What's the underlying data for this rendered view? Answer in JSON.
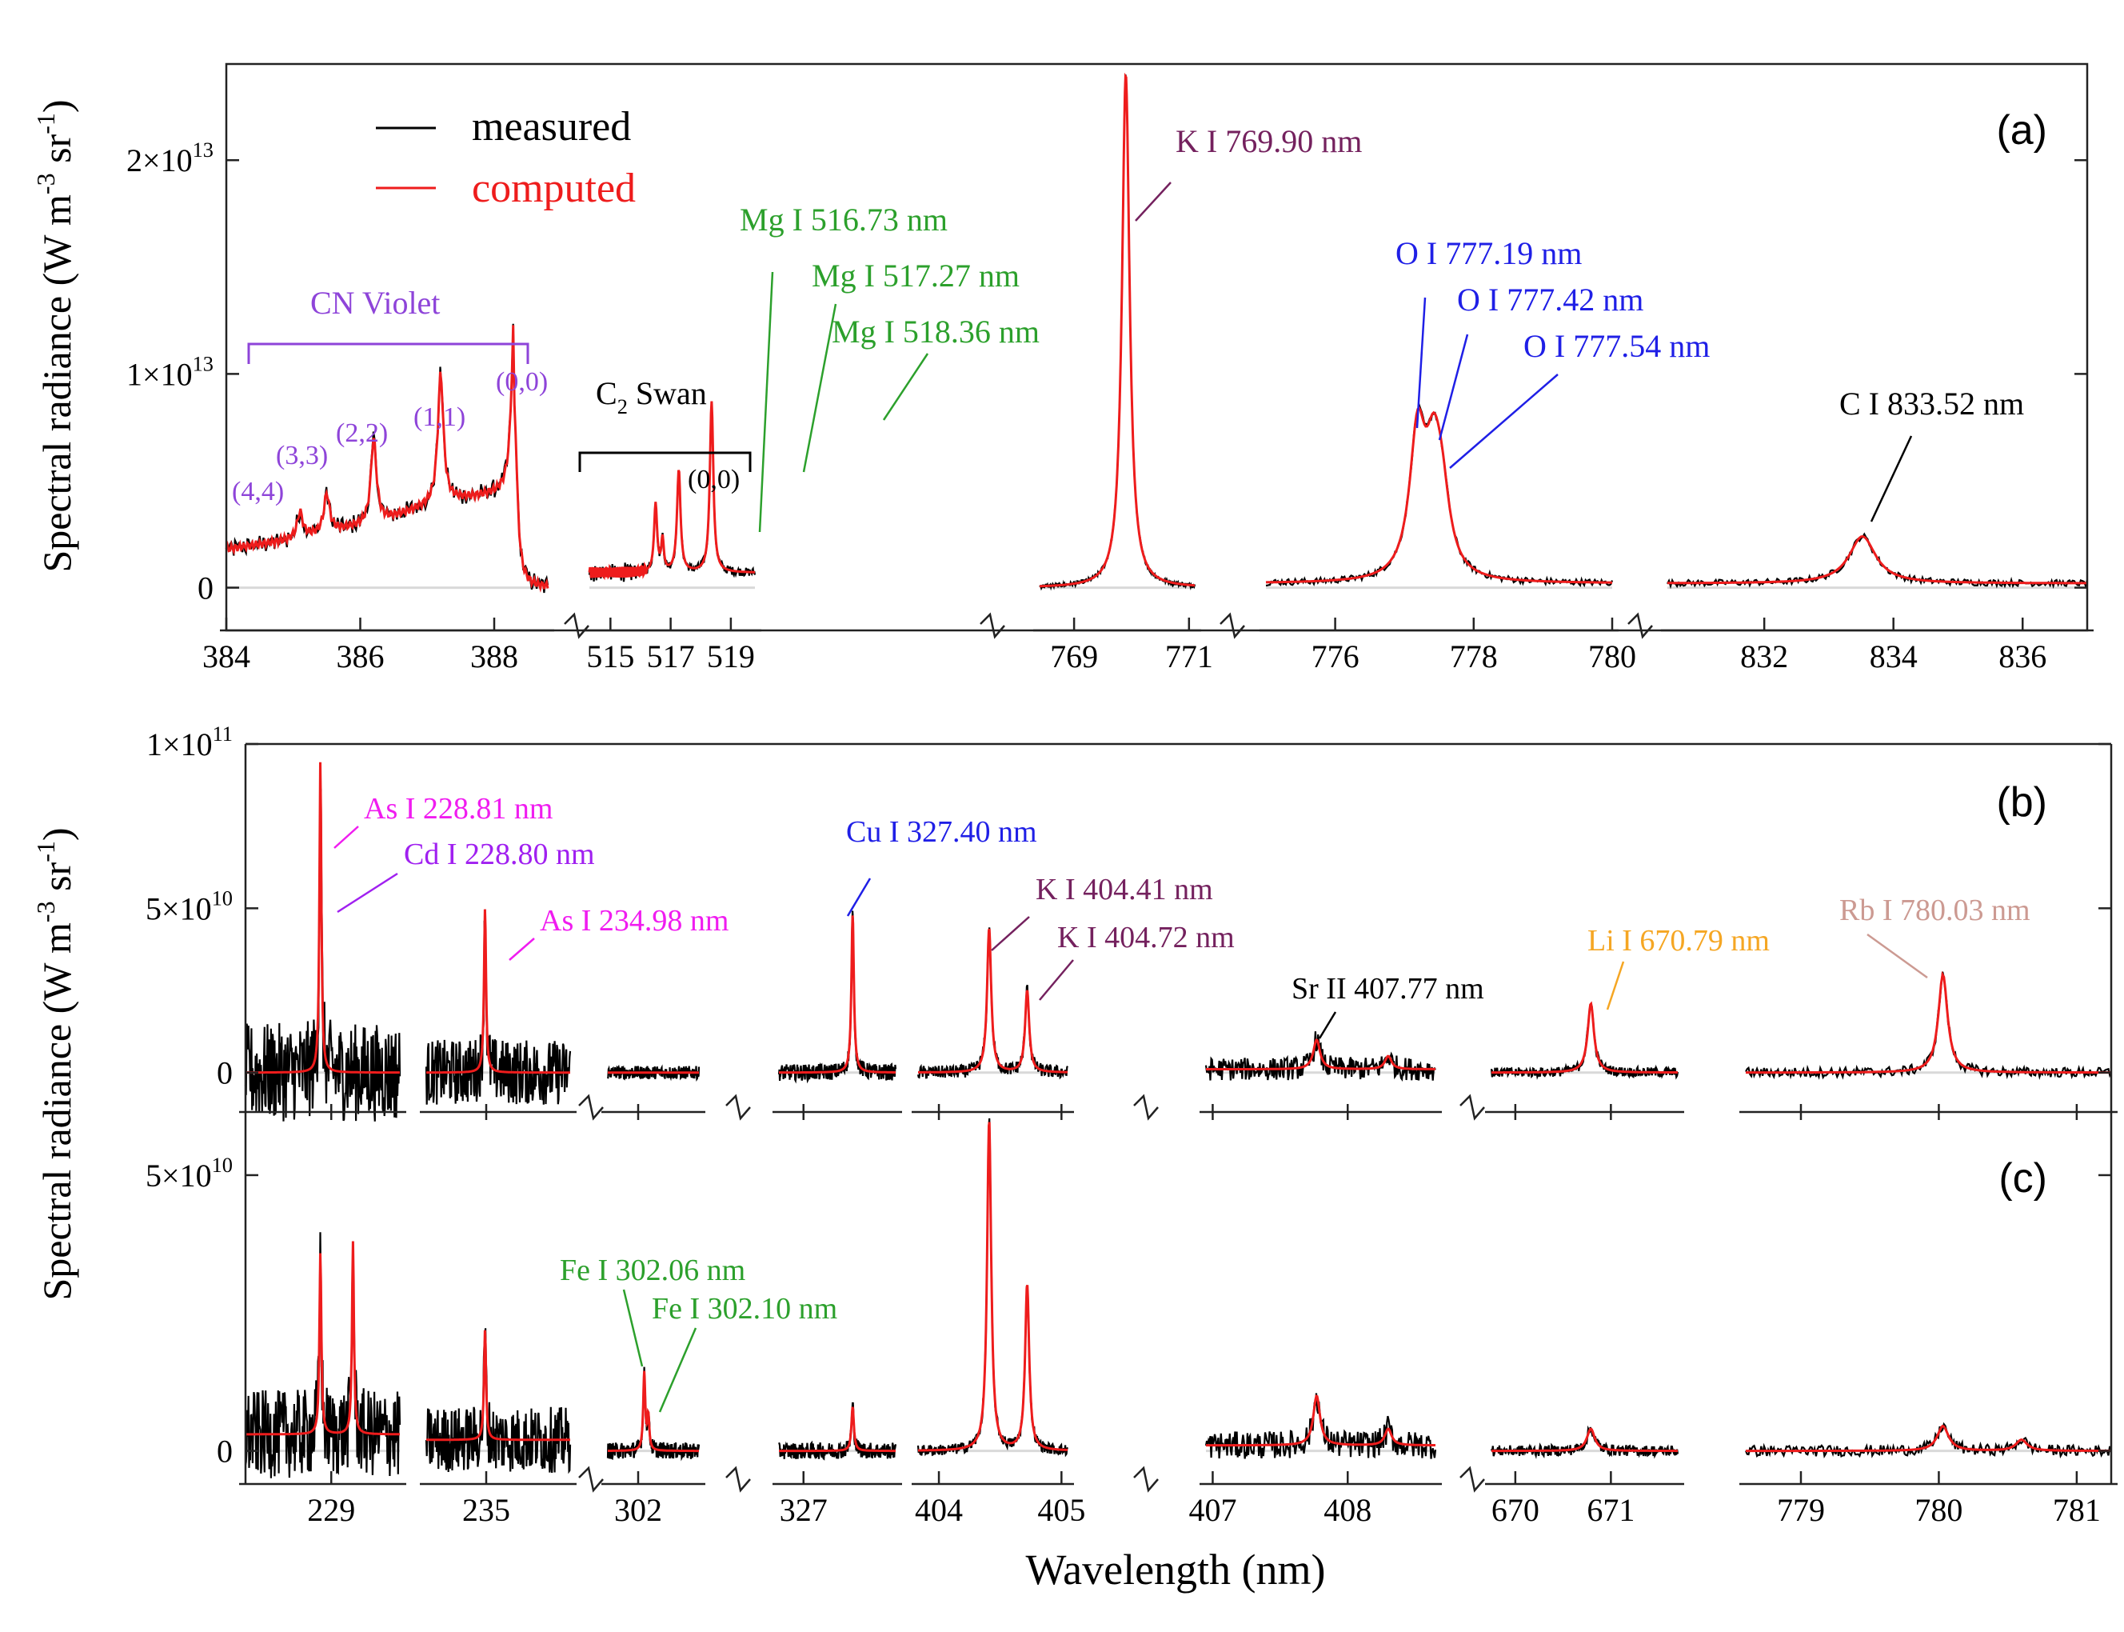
{
  "figure": {
    "x_axis_title": "Wavelength (nm)",
    "legend": {
      "measured": "measured",
      "computed": "computed"
    }
  },
  "colors": {
    "measured": "#000000",
    "computed": "#ee1c1c",
    "cn": "#8e44d9",
    "mg": "#2ca02c",
    "k": "#74215e",
    "o": "#1f1fe6",
    "as": "#f01cf0",
    "cd": "#a020f0",
    "cu": "#1f1fe6",
    "li": "#f5a623",
    "rb": "#cc9a92",
    "fe": "#2ca02c",
    "black": "#000000"
  },
  "chart_data": [
    {
      "type": "line",
      "panel_label": "(a)",
      "ylabel_main": "Spectral radiance (W m",
      "ylabel_exp1": "-3",
      "ylabel_mid": " sr",
      "ylabel_exp2": "-1",
      "ylabel_end": ")",
      "ylim": [
        -2000000000000.0,
        24500000000000.0
      ],
      "yticks": [
        {
          "value": 0,
          "base": "0",
          "exp": ""
        },
        {
          "value": 10000000000000.0,
          "base": "1×10",
          "exp": "13"
        },
        {
          "value": 20000000000000.0,
          "base": "2×10",
          "exp": "13"
        }
      ],
      "series_names": [
        "measured",
        "computed"
      ],
      "segments": [
        {
          "range": [
            384,
            388.8
          ],
          "ticks": [
            "384",
            "386",
            "388"
          ],
          "baseline": 1200000000000.0,
          "noise": 300000000000.0,
          "ramp": [
            [
              384,
              1800000000000.0
            ],
            [
              384.9,
              2200000000000.0
            ],
            [
              385.5,
              2600000000000.0
            ],
            [
              386.2,
              3000000000000.0
            ],
            [
              387.2,
              4000000000000.0
            ],
            [
              388.3,
              4500000000000.0
            ]
          ],
          "peaks": [
            [
              385.1,
              1200000000000.0,
              0.05
            ],
            [
              385.5,
              1800000000000.0,
              0.05
            ],
            [
              386.2,
              4000000000000.0,
              0.05
            ],
            [
              387.2,
              6000000000000.0,
              0.05
            ],
            [
              388.3,
              8500000000000.0,
              0.05
            ]
          ]
        },
        {
          "range": [
            514.3,
            519.8
          ],
          "ticks": [
            "515",
            "517",
            "519"
          ],
          "baseline": 700000000000.0,
          "noise": 200000000000.0,
          "peaks": [
            [
              516.5,
              3200000000000.0,
              0.06
            ],
            [
              516.73,
              1500000000000.0,
              0.05
            ],
            [
              517.27,
              4800000000000.0,
              0.07
            ],
            [
              518.36,
              8000000000000.0,
              0.07
            ]
          ]
        },
        {
          "range": [
            768.4,
            771.1
          ],
          "ticks": [
            "769",
            "771"
          ],
          "baseline": 0.0,
          "noise": 100000000000.0,
          "peaks": [
            [
              769.9,
              24000000000000.0,
              0.08
            ]
          ]
        },
        {
          "range": [
            775,
            780.0
          ],
          "ticks": [
            "776",
            "778",
            "780"
          ],
          "baseline": 200000000000.0,
          "noise": 150000000000.0,
          "peaks": [
            [
              777.19,
              6500000000000.0,
              0.14
            ],
            [
              777.42,
              4500000000000.0,
              0.14
            ],
            [
              777.54,
              3000000000000.0,
              0.14
            ]
          ]
        },
        {
          "range": [
            830.5,
            837
          ],
          "ticks": [
            "832",
            "834",
            "836"
          ],
          "baseline": 200000000000.0,
          "noise": 150000000000.0,
          "peaks": [
            [
              833.52,
              2200000000000.0,
              0.25
            ]
          ]
        }
      ],
      "annotations": [
        {
          "text": "CN Violet",
          "color": "cn"
        },
        {
          "text": "(4,4)",
          "color": "cn"
        },
        {
          "text": "(3,3)",
          "color": "cn"
        },
        {
          "text": "(2,2)",
          "color": "cn"
        },
        {
          "text": "(1,1)",
          "color": "cn"
        },
        {
          "text": "(0,0)",
          "color": "cn"
        },
        {
          "text": "C",
          "sub": "2",
          "text2": " Swan",
          "color": "black"
        },
        {
          "text": "(0,0)",
          "color": "black"
        },
        {
          "text": "Mg I 516.73 nm",
          "color": "mg"
        },
        {
          "text": "Mg I 517.27 nm",
          "color": "mg"
        },
        {
          "text": "Mg I 518.36 nm",
          "color": "mg"
        },
        {
          "text": "K I 769.90 nm",
          "color": "k"
        },
        {
          "text": "O I 777.19 nm",
          "color": "o"
        },
        {
          "text": "O I 777.42 nm",
          "color": "o"
        },
        {
          "text": "O I 777.54 nm",
          "color": "o"
        },
        {
          "text": "C I 833.52 nm",
          "color": "black"
        }
      ]
    },
    {
      "type": "line",
      "panel_label": "(b)",
      "ylim": [
        -12000000000.0,
        100000000000.0
      ],
      "yticks": [
        {
          "value": 0,
          "base": "0",
          "exp": ""
        },
        {
          "value": 50000000000.0,
          "base": "5×10",
          "exp": "10"
        },
        {
          "value": 100000000000.0,
          "base": "1×10",
          "exp": "11"
        }
      ],
      "series_names": [
        "measured",
        "computed"
      ],
      "segments": [
        {
          "range": [
            227.5,
            230.2
          ],
          "ticks": [
            "229"
          ],
          "baseline": 0.0,
          "noise": 15000000000.0,
          "peaks": [
            [
              228.81,
              95000000000.0,
              0.02
            ]
          ]
        },
        {
          "range": [
            234.0,
            236.4
          ],
          "ticks": [
            "235"
          ],
          "baseline": 0.0,
          "noise": 10000000000.0,
          "peaks": [
            [
              234.98,
              50000000000.0,
              0.02
            ]
          ]
        },
        {
          "range": [
            301.7,
            302.6
          ],
          "ticks": [
            "302"
          ],
          "baseline": 0.0,
          "noise": 2000000000.0,
          "peaks": []
        },
        {
          "range": [
            326.8,
            327.75
          ],
          "ticks": [
            "327"
          ],
          "baseline": 0.0,
          "noise": 2500000000.0,
          "peaks": [
            [
              327.4,
              48000000000.0,
              0.012
            ]
          ]
        },
        {
          "range": [
            403.83,
            405.05
          ],
          "ticks": [
            "404",
            "405"
          ],
          "baseline": 0.0,
          "noise": 2000000000.0,
          "peaks": [
            [
              404.41,
              44000000000.0,
              0.02
            ],
            [
              404.72,
              25000000000.0,
              0.02
            ]
          ]
        },
        {
          "range": [
            406.95,
            408.65
          ],
          "ticks": [
            "407",
            "408"
          ],
          "baseline": 1000000000.0,
          "noise": 3500000000.0,
          "peaks": [
            [
              407.77,
              9000000000.0,
              0.03
            ],
            [
              408.3,
              4000000000.0,
              0.03
            ]
          ]
        },
        {
          "range": [
            669.75,
            671.7
          ],
          "ticks": [
            "670",
            "671"
          ],
          "baseline": 0.0,
          "noise": 1500000000.0,
          "peaks": [
            [
              670.79,
              21000000000.0,
              0.04
            ]
          ]
        },
        {
          "range": [
            778.6,
            781.25
          ],
          "ticks": [
            "779",
            "780",
            "781"
          ],
          "baseline": 0.0,
          "noise": 1500000000.0,
          "peaks": [
            [
              780.03,
              30000000000.0,
              0.04
            ]
          ]
        }
      ],
      "annotations": [
        {
          "text": "As I 228.81 nm",
          "color": "as"
        },
        {
          "text": "Cd I 228.80 nm",
          "color": "cd"
        },
        {
          "text": "As I 234.98 nm",
          "color": "as"
        },
        {
          "text": "Cu I 327.40 nm",
          "color": "cu"
        },
        {
          "text": "K I 404.41 nm",
          "color": "k"
        },
        {
          "text": "K I 404.72 nm",
          "color": "k"
        },
        {
          "text": "Sr II 407.77 nm",
          "color": "black"
        },
        {
          "text": "Li I 670.79 nm",
          "color": "li"
        },
        {
          "text": "Rb I 780.03 nm",
          "color": "rb"
        }
      ]
    },
    {
      "type": "line",
      "panel_label": "(c)",
      "ylim": [
        -6000000000.0,
        60000000000.0
      ],
      "yticks": [
        {
          "value": 0,
          "base": "0",
          "exp": ""
        },
        {
          "value": 50000000000.0,
          "base": "5×10",
          "exp": "10"
        }
      ],
      "series_names": [
        "measured",
        "computed"
      ],
      "segments": [
        {
          "range": [
            227.5,
            230.2
          ],
          "ticks": [
            "229"
          ],
          "baseline": 3000000000.0,
          "noise": 8000000000.0,
          "peaks": [
            [
              228.81,
              33000000000.0,
              0.02
            ],
            [
              229.38,
              35000000000.0,
              0.02
            ]
          ]
        },
        {
          "range": [
            234.0,
            236.4
          ],
          "ticks": [
            "235"
          ],
          "baseline": 2000000000.0,
          "noise": 6000000000.0,
          "peaks": [
            [
              234.98,
              20000000000.0,
              0.02
            ]
          ]
        },
        {
          "range": [
            301.7,
            302.6
          ],
          "ticks": [
            "302"
          ],
          "baseline": 0.0,
          "noise": 1500000000.0,
          "peaks": [
            [
              302.06,
              14000000000.0,
              0.012
            ],
            [
              302.1,
              6000000000.0,
              0.012
            ]
          ]
        },
        {
          "range": [
            326.8,
            327.75
          ],
          "ticks": [
            "327"
          ],
          "baseline": 0.0,
          "noise": 1500000000.0,
          "peaks": [
            [
              327.4,
              8000000000.0,
              0.012
            ]
          ]
        },
        {
          "range": [
            403.83,
            405.05
          ],
          "ticks": [
            "404",
            "405"
          ],
          "baseline": 0.0,
          "noise": 1000000000.0,
          "peaks": [
            [
              404.41,
              60000000000.0,
              0.02
            ],
            [
              404.72,
              30000000000.0,
              0.02
            ]
          ]
        },
        {
          "range": [
            406.95,
            408.65
          ],
          "ticks": [
            "407",
            "408"
          ],
          "baseline": 1000000000.0,
          "noise": 2500000000.0,
          "peaks": [
            [
              407.77,
              9000000000.0,
              0.03
            ],
            [
              408.3,
              3000000000.0,
              0.03
            ]
          ]
        },
        {
          "range": [
            669.75,
            671.7
          ],
          "ticks": [
            "670",
            "671"
          ],
          "baseline": 0.0,
          "noise": 1000000000.0,
          "peaks": [
            [
              670.79,
              4000000000.0,
              0.05
            ]
          ]
        },
        {
          "range": [
            778.6,
            781.25
          ],
          "ticks": [
            "779",
            "780",
            "781"
          ],
          "baseline": 0.0,
          "noise": 1000000000.0,
          "peaks": [
            [
              780.03,
              4500000000.0,
              0.05
            ],
            [
              780.6,
              2000000000.0,
              0.05
            ]
          ]
        }
      ],
      "annotations": [
        {
          "text": "Fe I 302.06 nm",
          "color": "fe"
        },
        {
          "text": "Fe I 302.10 nm",
          "color": "fe"
        }
      ]
    }
  ]
}
